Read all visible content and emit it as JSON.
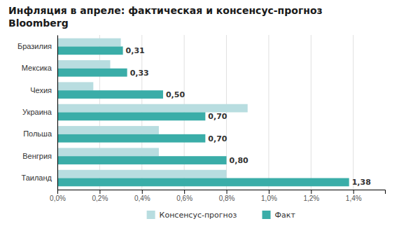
{
  "chart_data": {
    "type": "bar",
    "orientation": "horizontal",
    "title": "Инфляция в апреле: фактическая и консенсус-прогноз",
    "subtitle": "Bloomberg",
    "categories": [
      "Таиланд",
      "Венгрия",
      "Польша",
      "Украина",
      "Чехия",
      "Мексика",
      "Бразилия"
    ],
    "series": [
      {
        "name": "Консенсус-прогноз",
        "color": "#b8dde0",
        "values": [
          0.8,
          0.48,
          0.48,
          0.9,
          0.17,
          0.25,
          0.3
        ]
      },
      {
        "name": "Факт",
        "color": "#3aada8",
        "values": [
          1.38,
          0.8,
          0.7,
          0.7,
          0.5,
          0.33,
          0.31
        ],
        "data_labels": true,
        "value_labels": [
          "1,38",
          "0,80",
          "0,70",
          "0,70",
          "0,50",
          "0,33",
          "0,31"
        ]
      }
    ],
    "xlim": [
      0,
      1.55
    ],
    "xticks": [
      {
        "value": 0,
        "label": "0,0%"
      },
      {
        "value": 0.2,
        "label": "0,2%"
      },
      {
        "value": 0.4,
        "label": "0,4%"
      },
      {
        "value": 0.6,
        "label": "0,6%"
      },
      {
        "value": 0.8,
        "label": "0,8%"
      },
      {
        "value": 1.0,
        "label": "1,0%"
      },
      {
        "value": 1.2,
        "label": "1,2%"
      },
      {
        "value": 1.4,
        "label": "1,4%"
      }
    ],
    "grid": true,
    "legend": "bottom"
  }
}
